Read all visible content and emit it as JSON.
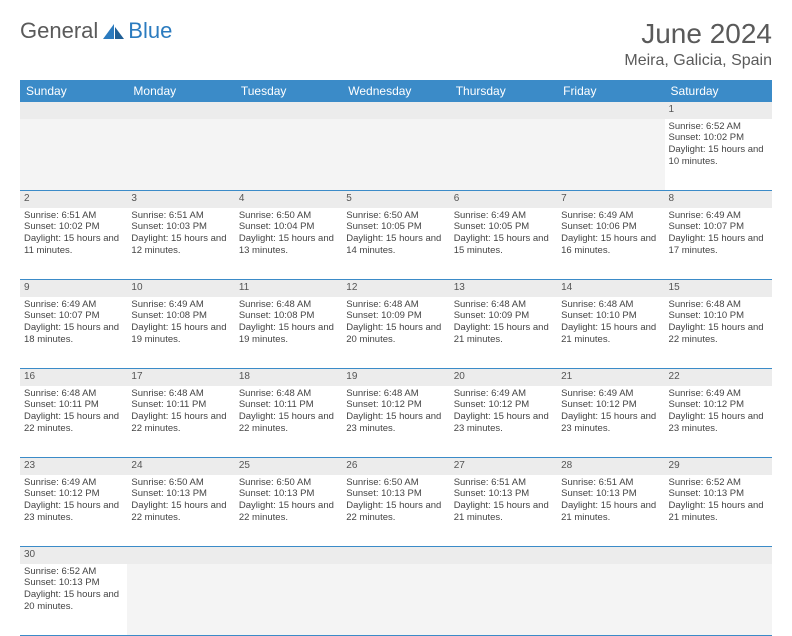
{
  "brand": {
    "part1": "General",
    "part2": "Blue"
  },
  "title": "June 2024",
  "location": "Meira, Galicia, Spain",
  "colors": {
    "header_bg": "#3b8bc8",
    "header_text": "#ffffff",
    "daynum_bg": "#ececec",
    "border": "#3b8bc8",
    "text": "#444444",
    "brand_dark": "#5a5a5a",
    "brand_blue": "#2b7bbf"
  },
  "weekdays": [
    "Sunday",
    "Monday",
    "Tuesday",
    "Wednesday",
    "Thursday",
    "Friday",
    "Saturday"
  ],
  "weeks": [
    [
      null,
      null,
      null,
      null,
      null,
      null,
      {
        "n": "1",
        "sr": "6:52 AM",
        "ss": "10:02 PM",
        "dl": "15 hours and 10 minutes."
      }
    ],
    [
      {
        "n": "2",
        "sr": "6:51 AM",
        "ss": "10:02 PM",
        "dl": "15 hours and 11 minutes."
      },
      {
        "n": "3",
        "sr": "6:51 AM",
        "ss": "10:03 PM",
        "dl": "15 hours and 12 minutes."
      },
      {
        "n": "4",
        "sr": "6:50 AM",
        "ss": "10:04 PM",
        "dl": "15 hours and 13 minutes."
      },
      {
        "n": "5",
        "sr": "6:50 AM",
        "ss": "10:05 PM",
        "dl": "15 hours and 14 minutes."
      },
      {
        "n": "6",
        "sr": "6:49 AM",
        "ss": "10:05 PM",
        "dl": "15 hours and 15 minutes."
      },
      {
        "n": "7",
        "sr": "6:49 AM",
        "ss": "10:06 PM",
        "dl": "15 hours and 16 minutes."
      },
      {
        "n": "8",
        "sr": "6:49 AM",
        "ss": "10:07 PM",
        "dl": "15 hours and 17 minutes."
      }
    ],
    [
      {
        "n": "9",
        "sr": "6:49 AM",
        "ss": "10:07 PM",
        "dl": "15 hours and 18 minutes."
      },
      {
        "n": "10",
        "sr": "6:49 AM",
        "ss": "10:08 PM",
        "dl": "15 hours and 19 minutes."
      },
      {
        "n": "11",
        "sr": "6:48 AM",
        "ss": "10:08 PM",
        "dl": "15 hours and 19 minutes."
      },
      {
        "n": "12",
        "sr": "6:48 AM",
        "ss": "10:09 PM",
        "dl": "15 hours and 20 minutes."
      },
      {
        "n": "13",
        "sr": "6:48 AM",
        "ss": "10:09 PM",
        "dl": "15 hours and 21 minutes."
      },
      {
        "n": "14",
        "sr": "6:48 AM",
        "ss": "10:10 PM",
        "dl": "15 hours and 21 minutes."
      },
      {
        "n": "15",
        "sr": "6:48 AM",
        "ss": "10:10 PM",
        "dl": "15 hours and 22 minutes."
      }
    ],
    [
      {
        "n": "16",
        "sr": "6:48 AM",
        "ss": "10:11 PM",
        "dl": "15 hours and 22 minutes."
      },
      {
        "n": "17",
        "sr": "6:48 AM",
        "ss": "10:11 PM",
        "dl": "15 hours and 22 minutes."
      },
      {
        "n": "18",
        "sr": "6:48 AM",
        "ss": "10:11 PM",
        "dl": "15 hours and 22 minutes."
      },
      {
        "n": "19",
        "sr": "6:48 AM",
        "ss": "10:12 PM",
        "dl": "15 hours and 23 minutes."
      },
      {
        "n": "20",
        "sr": "6:49 AM",
        "ss": "10:12 PM",
        "dl": "15 hours and 23 minutes."
      },
      {
        "n": "21",
        "sr": "6:49 AM",
        "ss": "10:12 PM",
        "dl": "15 hours and 23 minutes."
      },
      {
        "n": "22",
        "sr": "6:49 AM",
        "ss": "10:12 PM",
        "dl": "15 hours and 23 minutes."
      }
    ],
    [
      {
        "n": "23",
        "sr": "6:49 AM",
        "ss": "10:12 PM",
        "dl": "15 hours and 23 minutes."
      },
      {
        "n": "24",
        "sr": "6:50 AM",
        "ss": "10:13 PM",
        "dl": "15 hours and 22 minutes."
      },
      {
        "n": "25",
        "sr": "6:50 AM",
        "ss": "10:13 PM",
        "dl": "15 hours and 22 minutes."
      },
      {
        "n": "26",
        "sr": "6:50 AM",
        "ss": "10:13 PM",
        "dl": "15 hours and 22 minutes."
      },
      {
        "n": "27",
        "sr": "6:51 AM",
        "ss": "10:13 PM",
        "dl": "15 hours and 21 minutes."
      },
      {
        "n": "28",
        "sr": "6:51 AM",
        "ss": "10:13 PM",
        "dl": "15 hours and 21 minutes."
      },
      {
        "n": "29",
        "sr": "6:52 AM",
        "ss": "10:13 PM",
        "dl": "15 hours and 21 minutes."
      }
    ],
    [
      {
        "n": "30",
        "sr": "6:52 AM",
        "ss": "10:13 PM",
        "dl": "15 hours and 20 minutes."
      },
      null,
      null,
      null,
      null,
      null,
      null
    ]
  ],
  "labels": {
    "sunrise": "Sunrise:",
    "sunset": "Sunset:",
    "daylight": "Daylight:"
  }
}
